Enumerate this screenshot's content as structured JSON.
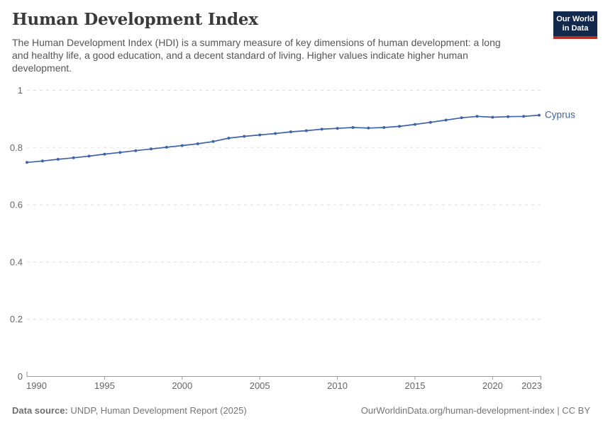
{
  "header": {
    "title": "Human Development Index",
    "subtitle_lines": [
      "The Human Development Index (HDI) is a summary measure of key dimensions of human development: a long",
      "and healthy life, a good education, and a decent standard of living. Higher values indicate higher human",
      "development."
    ],
    "logo": {
      "line1": "Our World",
      "line2": "in Data"
    }
  },
  "chart_data": {
    "type": "line",
    "title": "Human Development Index",
    "x": [
      1990,
      1991,
      1992,
      1993,
      1994,
      1995,
      1996,
      1997,
      1998,
      1999,
      2000,
      2001,
      2002,
      2003,
      2004,
      2005,
      2006,
      2007,
      2008,
      2009,
      2010,
      2011,
      2012,
      2013,
      2014,
      2015,
      2016,
      2017,
      2018,
      2019,
      2020,
      2021,
      2022,
      2023
    ],
    "series": [
      {
        "name": "Cyprus",
        "color": "#3e63a8",
        "values": [
          0.748,
          0.753,
          0.759,
          0.764,
          0.77,
          0.777,
          0.783,
          0.789,
          0.795,
          0.801,
          0.807,
          0.813,
          0.821,
          0.833,
          0.839,
          0.844,
          0.849,
          0.855,
          0.859,
          0.864,
          0.867,
          0.87,
          0.868,
          0.87,
          0.874,
          0.881,
          0.888,
          0.896,
          0.904,
          0.909,
          0.906,
          0.908,
          0.909,
          0.913
        ]
      }
    ],
    "xlabel": "",
    "ylabel": "",
    "ylim": [
      0,
      1
    ],
    "yticks": [
      0,
      0.2,
      0.4,
      0.6,
      0.8,
      1
    ],
    "ytick_labels": [
      "0",
      "0.2",
      "0.4",
      "0.6",
      "0.8",
      "1"
    ],
    "xticks": [
      1990,
      1995,
      2000,
      2005,
      2010,
      2015,
      2020,
      2023
    ],
    "grid": "horizontal-dashed",
    "legend_position": "end-of-line-label",
    "marker": "circle"
  },
  "footer": {
    "source_label": "Data source:",
    "source_text": "UNDP, Human Development Report (2025)",
    "attribution": "OurWorldinData.org/human-development-index | CC BY"
  },
  "colors": {
    "line": "#3e63a8",
    "gridline": "#dddddd",
    "axis_line": "#999999",
    "axis_text": "#666666",
    "title_text": "#3a3a3a",
    "subtitle_text": "#555555",
    "footer_text": "#757575",
    "logo_bg": "#12294d",
    "logo_stripe": "#b13225"
  }
}
